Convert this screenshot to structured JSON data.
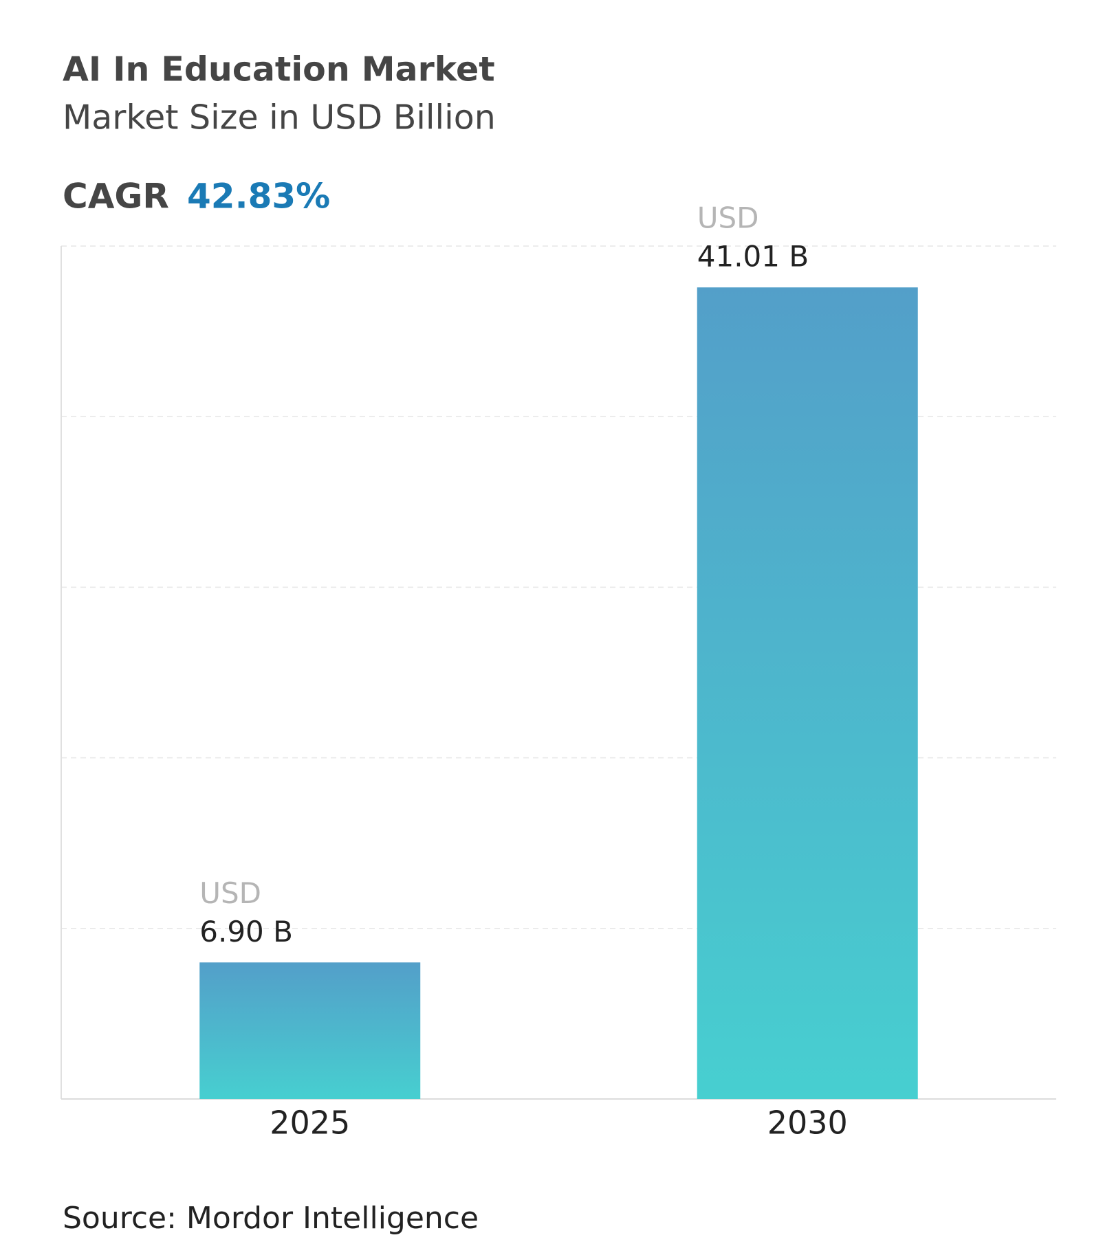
{
  "chart_data": {
    "type": "bar",
    "title": "AI In Education Market",
    "subtitle": "Market Size in USD Billion",
    "cagr_label": "CAGR",
    "cagr_value": "42.83%",
    "categories": [
      "2025",
      "2030"
    ],
    "values": [
      6.9,
      41.01
    ],
    "value_labels": [
      "6.90 B",
      "41.01 B"
    ],
    "value_prefix": "USD",
    "color": {
      "top": "#539fc9",
      "bottom": "#47cfd0"
    },
    "ylim": [
      0,
      43.1
    ],
    "grid": true,
    "source": "Source: Mordor Intelligence"
  }
}
